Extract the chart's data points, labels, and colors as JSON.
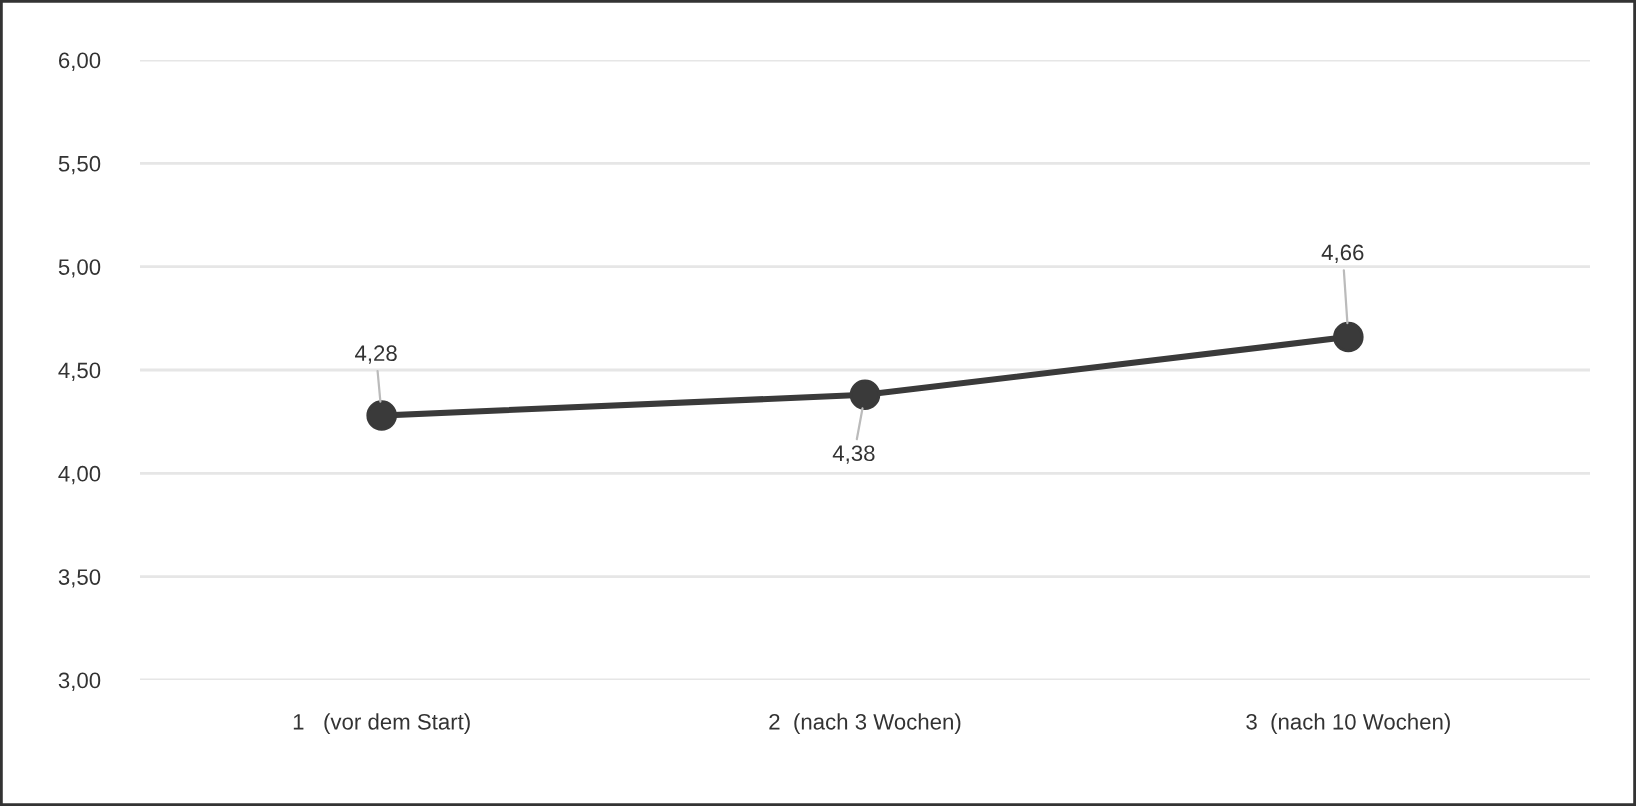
{
  "chart_data": {
    "type": "line",
    "categories": [
      "1   (vor dem Start)",
      "2  (nach 3 Wochen)",
      "3  (nach 10 Wochen)"
    ],
    "series": [
      {
        "color": "#3a3a3a",
        "values": [
          4.28,
          4.38,
          4.66
        ],
        "value_labels": [
          "4,28",
          "4,38",
          "4,66"
        ]
      }
    ],
    "ylim": [
      3,
      6
    ],
    "yticks": [
      {
        "value": 3,
        "label": "3,00"
      },
      {
        "value": 3.5,
        "label": "3,50"
      },
      {
        "value": 4,
        "label": "4,00"
      },
      {
        "value": 4.5,
        "label": "4,50"
      },
      {
        "value": 5,
        "label": "5,00"
      },
      {
        "value": 5.5,
        "label": "5,50"
      },
      {
        "value": 6,
        "label": "6,00"
      }
    ],
    "grid": "y",
    "marker": "circle",
    "line_style": "solid",
    "legend": false
  }
}
